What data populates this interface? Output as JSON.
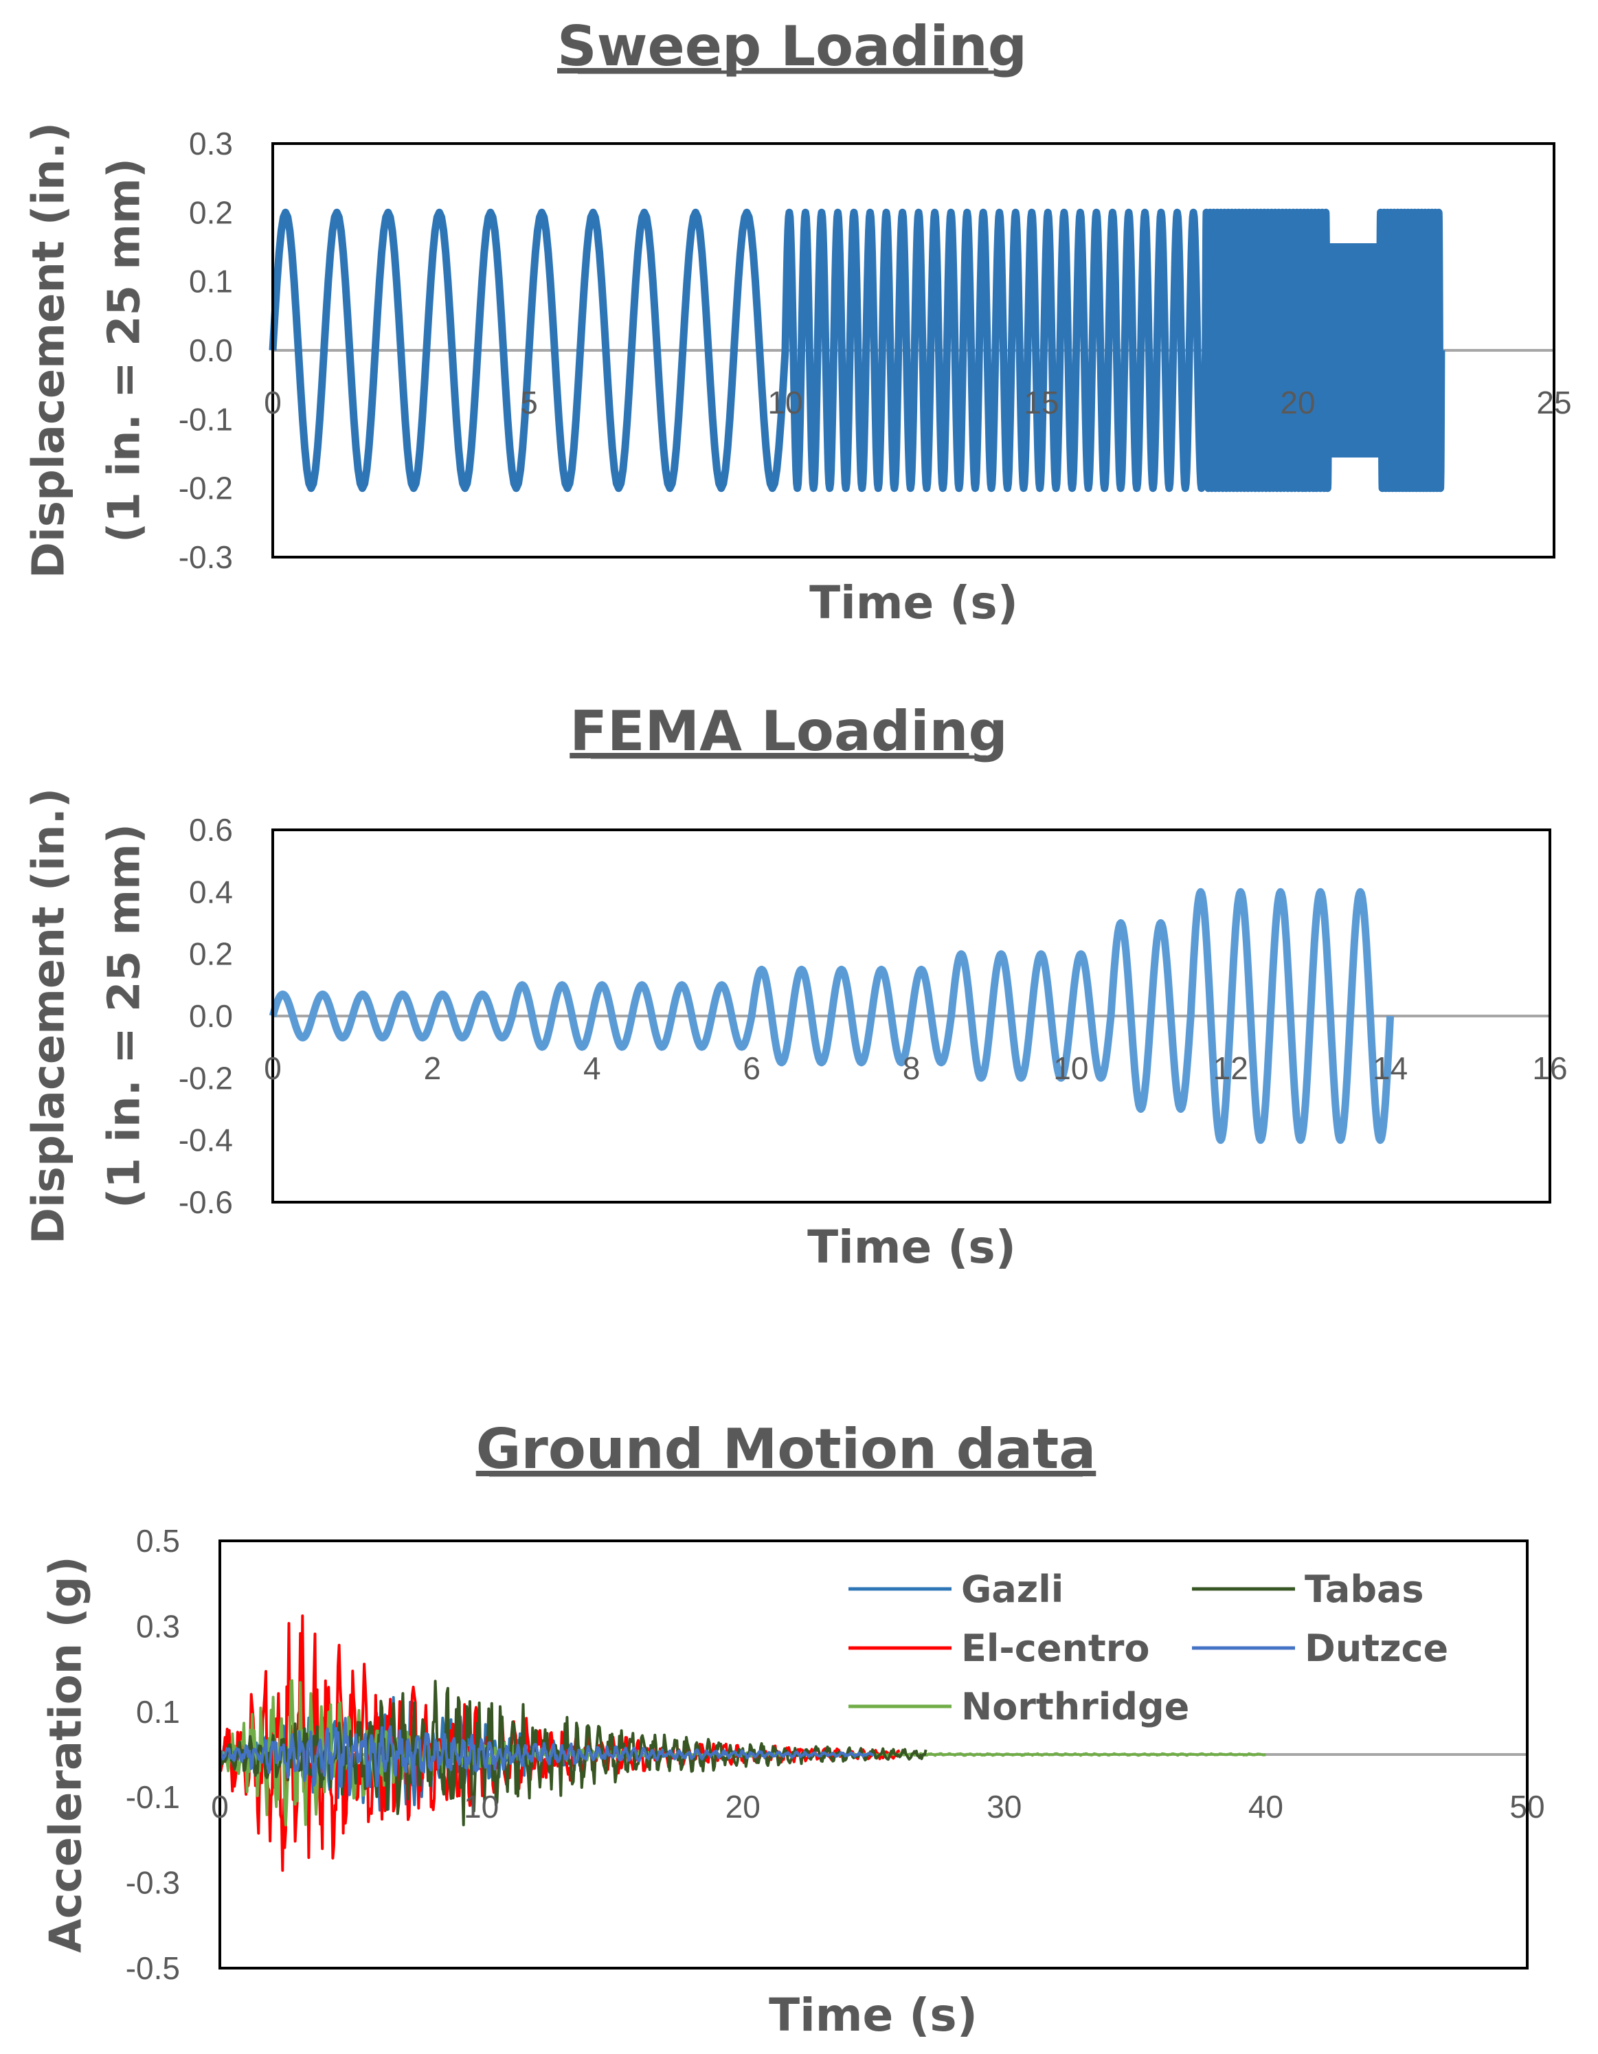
{
  "chart_data": [
    {
      "id": "sweep",
      "type": "line",
      "title": "Sweep Loading",
      "xlabel": "Time (s)",
      "ylabel_lines": [
        "Displacement (in.)",
        "(1 in. = 25 mm)"
      ],
      "xlim": [
        0,
        25
      ],
      "ylim": [
        -0.3,
        0.3
      ],
      "xticks": [
        "0",
        "5",
        "10",
        "15",
        "20",
        "25"
      ],
      "xtick_values": [
        0,
        5,
        10,
        15,
        20,
        25
      ],
      "yticks": [
        "0.3",
        "0.2",
        "0.1",
        "0.0",
        "-0.1",
        "-0.2",
        "-0.3"
      ],
      "ytick_values": [
        0.3,
        0.2,
        0.1,
        0.0,
        -0.1,
        -0.2,
        -0.3
      ],
      "grid": false,
      "zero_line_color": "#a6a6a6",
      "series": [
        {
          "name": "Sweep",
          "color": "#2e75b6",
          "segments": [
            {
              "t_start": 0,
              "t_end": 10,
              "amplitude": 0.2,
              "cycles": 10
            },
            {
              "t_start": 10,
              "t_end": 18.2,
              "amplitude": 0.2,
              "cycles": 26
            },
            {
              "t_start": 18.2,
              "t_end": 20.6,
              "amplitude": 0.2,
              "cycles": 34
            },
            {
              "t_start": 20.6,
              "t_end": 21.6,
              "amplitude": 0.15,
              "cycles": 30
            },
            {
              "t_start": 21.6,
              "t_end": 22.8,
              "amplitude": 0.2,
              "cycles": 18
            }
          ]
        }
      ]
    },
    {
      "id": "fema",
      "type": "line",
      "title": "FEMA Loading",
      "xlabel": "Time (s)",
      "ylabel_lines": [
        "Displacement (in.)",
        "(1 in. = 25 mm)"
      ],
      "xlim": [
        0,
        16
      ],
      "ylim": [
        -0.6,
        0.6
      ],
      "xticks": [
        "0",
        "2",
        "4",
        "6",
        "8",
        "10",
        "12",
        "14",
        "16"
      ],
      "xtick_values": [
        0,
        2,
        4,
        6,
        8,
        10,
        12,
        14,
        16
      ],
      "yticks": [
        "0.6",
        "0.4",
        "0.2",
        "0.0",
        "-0.2",
        "-0.4",
        "-0.6"
      ],
      "ytick_values": [
        0.6,
        0.4,
        0.2,
        0.0,
        -0.2,
        -0.4,
        -0.6
      ],
      "grid": false,
      "zero_line_color": "#a6a6a6",
      "series": [
        {
          "name": "FEMA",
          "color": "#5b9bd5",
          "period": 0.5,
          "amplitudes": [
            0.07,
            0.07,
            0.07,
            0.07,
            0.07,
            0.07,
            0.1,
            0.1,
            0.1,
            0.1,
            0.1,
            0.1,
            0.15,
            0.15,
            0.15,
            0.15,
            0.15,
            0.2,
            0.2,
            0.2,
            0.2,
            0.3,
            0.3,
            0.4,
            0.4,
            0.4,
            0.4,
            0.4
          ]
        }
      ]
    },
    {
      "id": "ground",
      "type": "line",
      "title": "Ground Motion data",
      "xlabel": "Time (s)",
      "ylabel_lines": [
        "Acceleration (g)"
      ],
      "xlim": [
        0,
        50
      ],
      "ylim": [
        -0.5,
        0.5
      ],
      "xticks": [
        "0",
        "10",
        "20",
        "30",
        "40",
        "50"
      ],
      "xtick_values": [
        0,
        10,
        20,
        30,
        40,
        50
      ],
      "yticks": [
        "0.5",
        "0.3",
        "0.1",
        "-0.1",
        "-0.3",
        "-0.5"
      ],
      "ytick_values": [
        0.5,
        0.3,
        0.1,
        -0.1,
        -0.3,
        -0.5
      ],
      "grid": false,
      "zero_line_color": "#a6a6a6",
      "legend_position": "top-right",
      "series": [
        {
          "name": "Gazli",
          "color": "#2e75b6",
          "duration": 14,
          "peak": 0.15,
          "peak_time": 6.5,
          "decay": 5,
          "freq": 3.1,
          "seed": 11
        },
        {
          "name": "El-centro",
          "color": "#ff0000",
          "duration": 26,
          "peak": 0.35,
          "peak_time": 3,
          "decay": 6,
          "freq": 2.1,
          "seed": 23
        },
        {
          "name": "Northridge",
          "color": "#70ad47",
          "duration": 40,
          "peak": 0.21,
          "peak_time": 2.5,
          "decay": 4,
          "freq": 2.7,
          "seed": 37
        },
        {
          "name": "Tabas",
          "color": "#375623",
          "duration": 27,
          "peak": 0.19,
          "peak_time": 9,
          "decay": 6,
          "freq": 2.4,
          "seed": 53
        },
        {
          "name": "Dutzce",
          "color": "#4472c4",
          "duration": 25,
          "peak": 0.1,
          "peak_time": 5,
          "decay": 6,
          "freq": 2.9,
          "seed": 71
        }
      ]
    }
  ]
}
